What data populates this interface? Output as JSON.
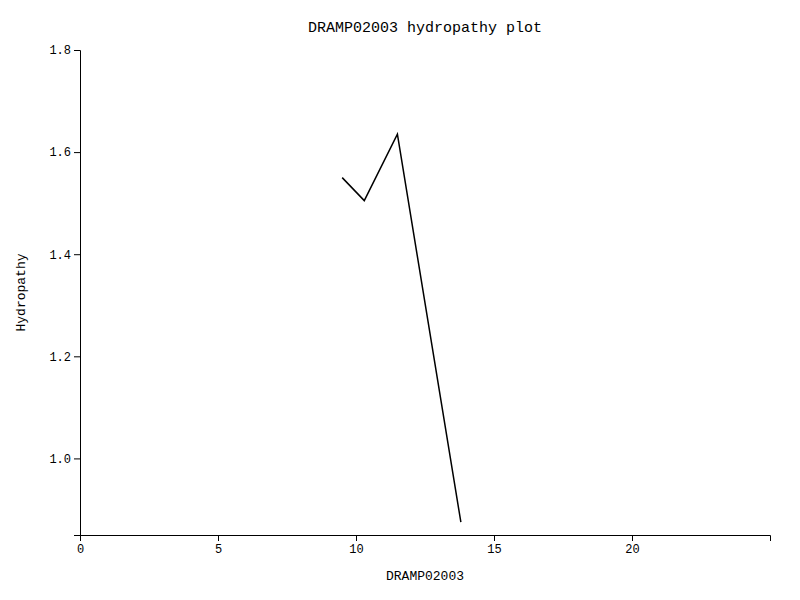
{
  "chart_data": {
    "type": "line",
    "title": "DRAMP02003 hydropathy plot",
    "xlabel": "DRAMP02003",
    "ylabel": "Hydropathy",
    "x": [
      9.5,
      10.3,
      11.5,
      13.8
    ],
    "values": [
      1.55,
      1.505,
      1.635,
      0.875
    ],
    "color": "#000000",
    "xlim": [
      0,
      25
    ],
    "ylim": [
      0.85,
      1.8
    ],
    "xticks": [
      0,
      5,
      10,
      15,
      20
    ],
    "yticks": [
      {
        "value": 1.0,
        "label": "1.0"
      },
      1.2,
      1.4,
      1.6,
      1.8
    ],
    "grid": false
  }
}
